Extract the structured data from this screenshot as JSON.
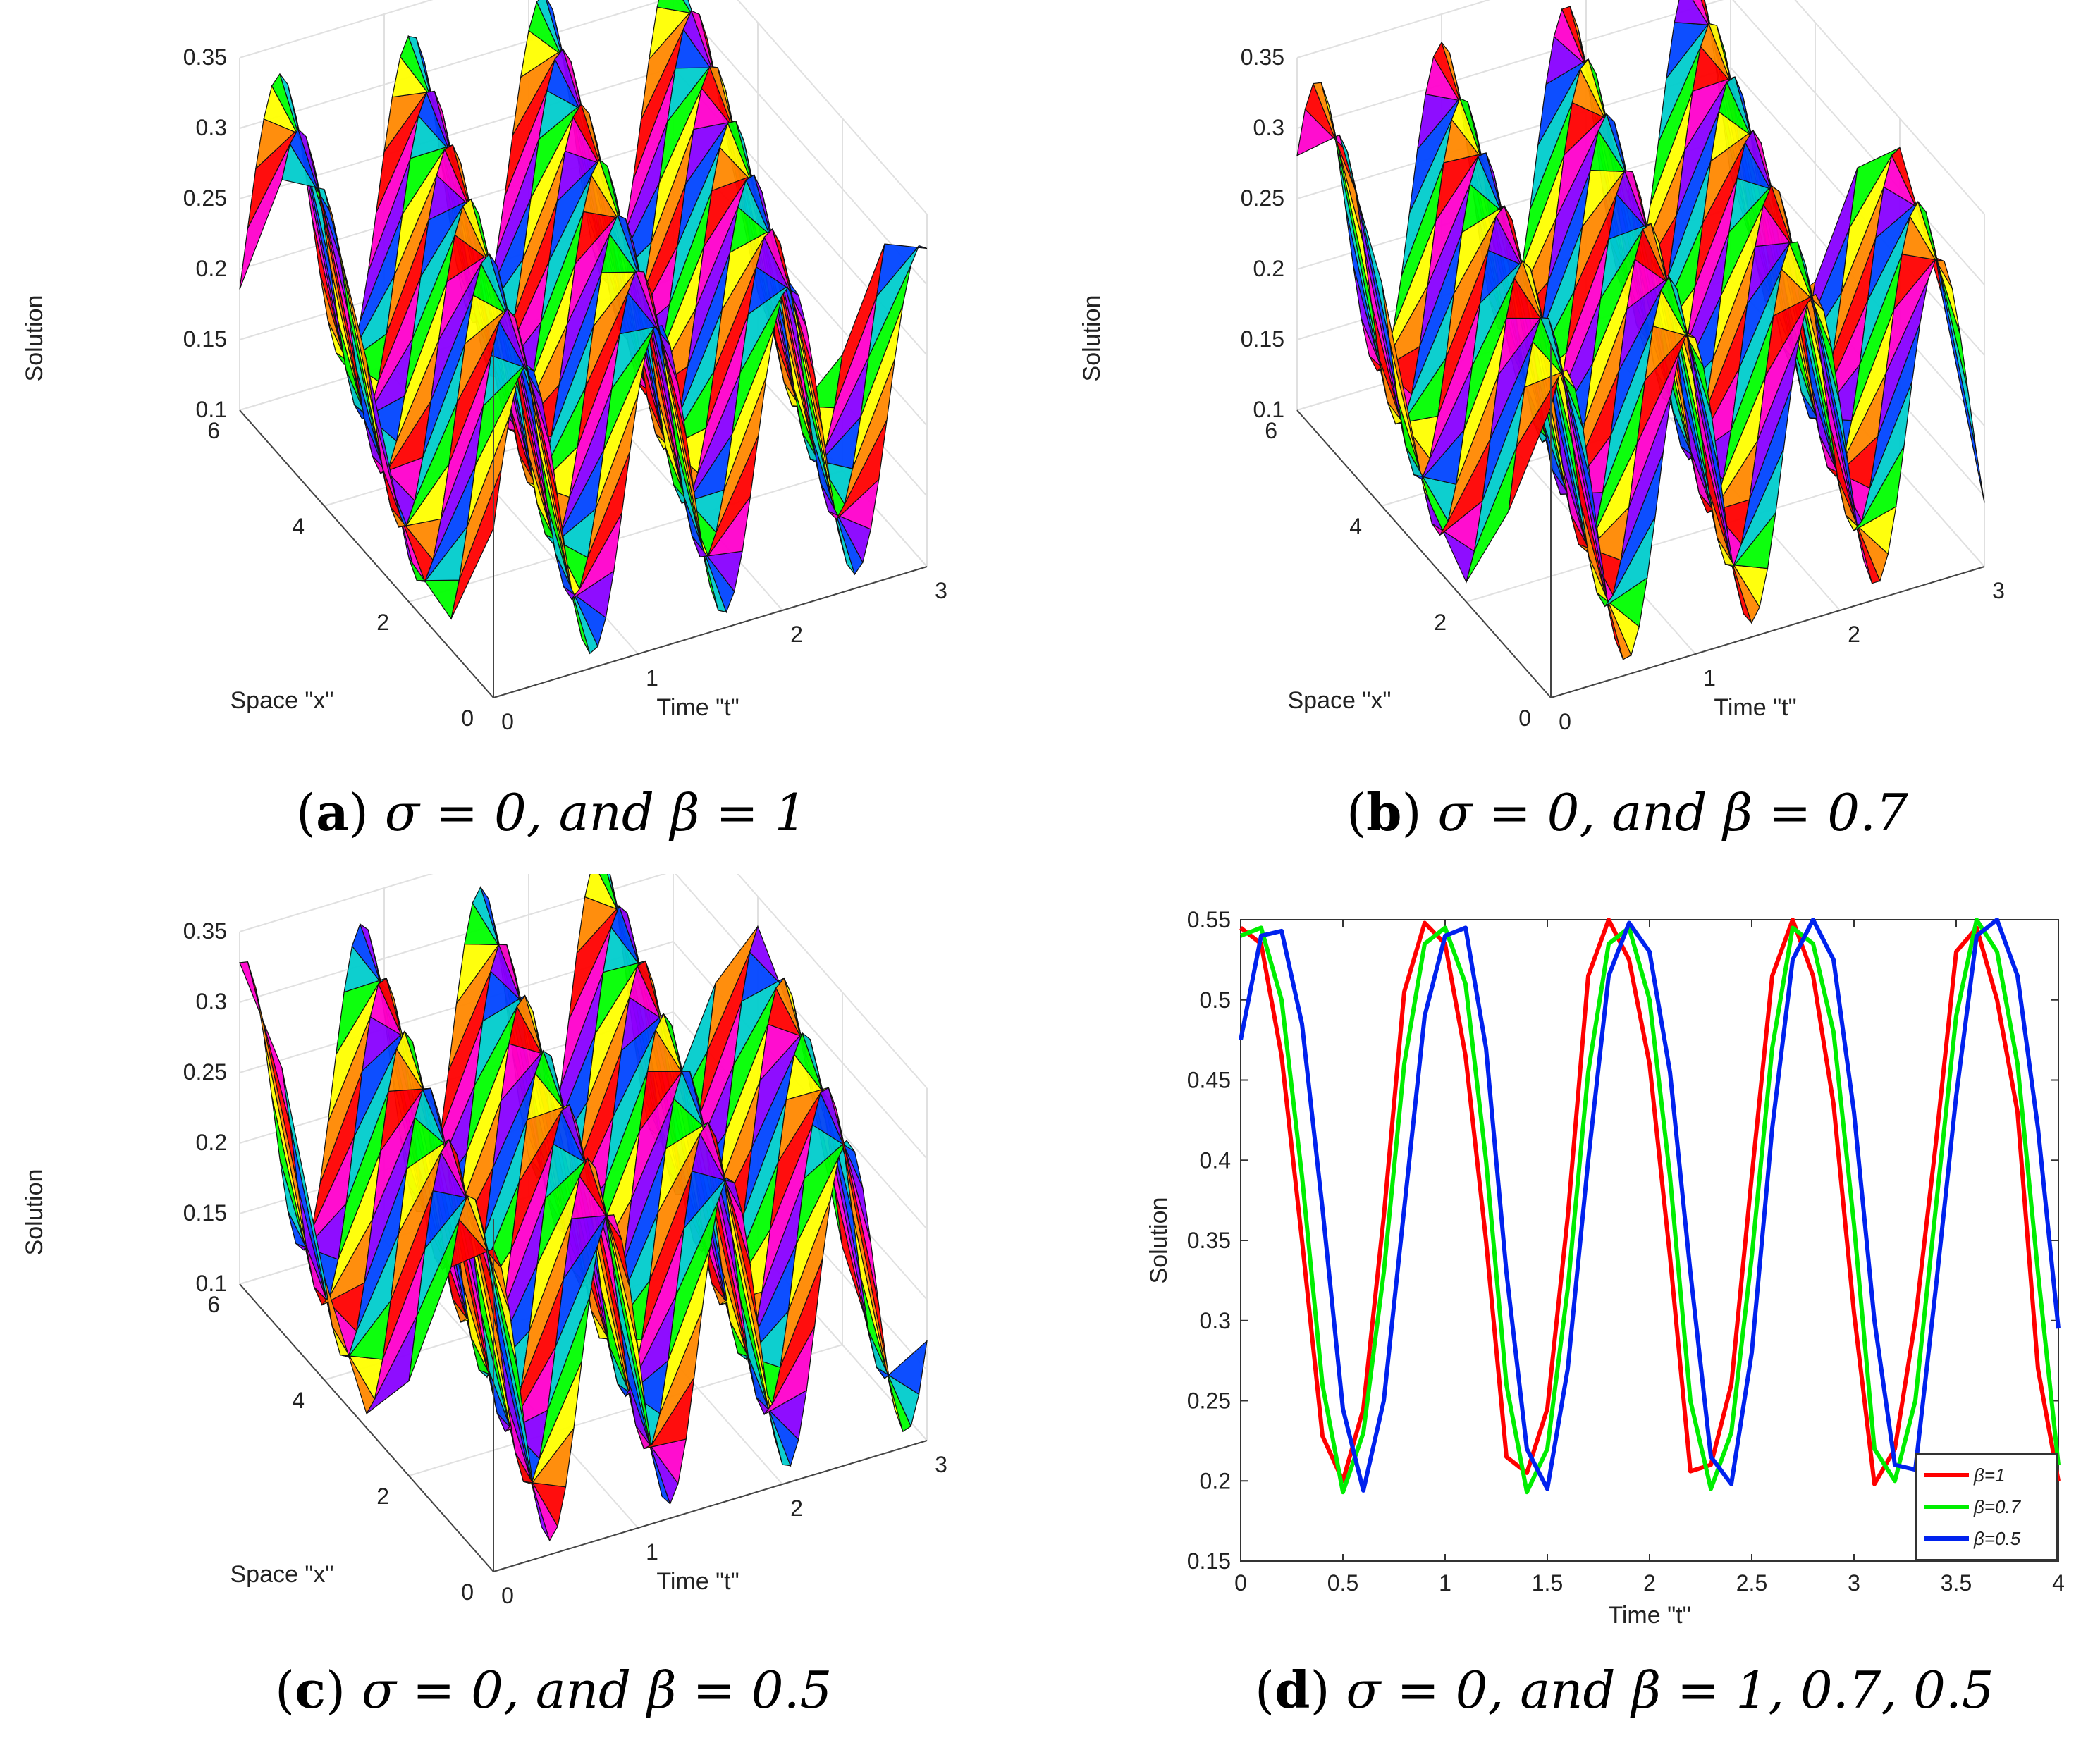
{
  "panels": [
    {
      "id": "a",
      "caption_letter": "a",
      "caption_math": "σ = 0, and  β = 1",
      "beta": 1,
      "z_label": "Solution",
      "x_label": "Space \"x\"",
      "t_label": "Time \"t\"",
      "z_ticks": [
        "0.1",
        "0.15",
        "0.2",
        "0.25",
        "0.3",
        "0.35"
      ],
      "x_ticks": [
        "0",
        "2",
        "4",
        "6"
      ],
      "t_ticks": [
        "0",
        "1",
        "2",
        "3"
      ]
    },
    {
      "id": "b",
      "caption_letter": "b",
      "caption_math": "σ = 0, and β = 0.7",
      "beta": 0.7,
      "z_label": "Solution",
      "x_label": "Space \"x\"",
      "t_label": "Time \"t\"",
      "z_ticks": [
        "0.1",
        "0.15",
        "0.2",
        "0.25",
        "0.3",
        "0.35"
      ],
      "x_ticks": [
        "0",
        "2",
        "4",
        "6"
      ],
      "t_ticks": [
        "0",
        "1",
        "2",
        "3"
      ]
    },
    {
      "id": "c",
      "caption_letter": "c",
      "caption_math": "σ = 0, and β = 0.5",
      "beta": 0.5,
      "z_label": "Solution",
      "x_label": "Space \"x\"",
      "t_label": "Time \"t\"",
      "z_ticks": [
        "0.1",
        "0.15",
        "0.2",
        "0.25",
        "0.3",
        "0.35"
      ],
      "x_ticks": [
        "0",
        "2",
        "4",
        "6"
      ],
      "t_ticks": [
        "0",
        "1",
        "2",
        "3"
      ]
    }
  ],
  "line_panel": {
    "caption_letter": "d",
    "caption_math": "σ = 0, and β = 1, 0.7, 0.5"
  },
  "chart_data": [
    {
      "type": "surface",
      "panel": "a",
      "zlim": [
        0.1,
        0.35
      ],
      "xlim": [
        0,
        6
      ],
      "tlim": [
        0,
        3
      ],
      "zlabel": "Solution",
      "xlabel": "Space \"x\"",
      "tlabel": "Time \"t\""
    },
    {
      "type": "surface",
      "panel": "b",
      "zlim": [
        0.1,
        0.35
      ],
      "xlim": [
        0,
        6
      ],
      "tlim": [
        0,
        3
      ],
      "zlabel": "Solution",
      "xlabel": "Space \"x\"",
      "tlabel": "Time \"t\""
    },
    {
      "type": "surface",
      "panel": "c",
      "zlim": [
        0.1,
        0.35
      ],
      "xlim": [
        0,
        6
      ],
      "tlim": [
        0,
        3
      ],
      "zlabel": "Solution",
      "xlabel": "Space \"x\"",
      "tlabel": "Time \"t\""
    },
    {
      "type": "line",
      "panel": "d",
      "xlabel": "Time \"t\"",
      "ylabel": "Solution",
      "xlim": [
        0,
        4
      ],
      "ylim": [
        0.15,
        0.55
      ],
      "xticks": [
        "0",
        "0.5",
        "1",
        "1.5",
        "2",
        "2.5",
        "3",
        "3.5",
        "4"
      ],
      "yticks": [
        "0.15",
        "0.2",
        "0.25",
        "0.3",
        "0.35",
        "0.4",
        "0.45",
        "0.5",
        "0.55"
      ],
      "legend_position": "bottom-right",
      "series": [
        {
          "name": "β=1",
          "color": "#ff0000",
          "x": [
            0,
            0.1,
            0.2,
            0.3,
            0.4,
            0.5,
            0.6,
            0.7,
            0.8,
            0.9,
            1.0,
            1.1,
            1.2,
            1.3,
            1.4,
            1.5,
            1.6,
            1.7,
            1.8,
            1.9,
            2.0,
            2.1,
            2.2,
            2.3,
            2.4,
            2.5,
            2.6,
            2.7,
            2.8,
            2.9,
            3.0,
            3.1,
            3.2,
            3.3,
            3.4,
            3.5,
            3.6,
            3.7,
            3.8,
            3.9,
            4.0
          ],
          "values": [
            0.545,
            0.535,
            0.465,
            0.35,
            0.228,
            0.2,
            0.245,
            0.365,
            0.505,
            0.548,
            0.535,
            0.465,
            0.35,
            0.215,
            0.205,
            0.245,
            0.365,
            0.515,
            0.55,
            0.525,
            0.46,
            0.34,
            0.206,
            0.21,
            0.26,
            0.39,
            0.515,
            0.55,
            0.515,
            0.435,
            0.305,
            0.198,
            0.22,
            0.3,
            0.41,
            0.53,
            0.545,
            0.5,
            0.43,
            0.27,
            0.2
          ]
        },
        {
          "name": "β=0.7",
          "color": "#00ee00",
          "x": [
            0,
            0.1,
            0.2,
            0.3,
            0.4,
            0.5,
            0.6,
            0.7,
            0.8,
            0.9,
            1.0,
            1.1,
            1.2,
            1.3,
            1.4,
            1.5,
            1.6,
            1.7,
            1.8,
            1.9,
            2.0,
            2.1,
            2.2,
            2.3,
            2.4,
            2.5,
            2.6,
            2.7,
            2.8,
            2.9,
            3.0,
            3.1,
            3.2,
            3.3,
            3.4,
            3.5,
            3.6,
            3.7,
            3.8,
            3.9,
            4.0
          ],
          "values": [
            0.54,
            0.545,
            0.5,
            0.39,
            0.26,
            0.193,
            0.23,
            0.33,
            0.46,
            0.535,
            0.545,
            0.51,
            0.4,
            0.26,
            0.193,
            0.22,
            0.32,
            0.455,
            0.535,
            0.545,
            0.5,
            0.39,
            0.25,
            0.195,
            0.23,
            0.34,
            0.47,
            0.545,
            0.535,
            0.48,
            0.36,
            0.22,
            0.2,
            0.25,
            0.37,
            0.49,
            0.55,
            0.53,
            0.46,
            0.33,
            0.21
          ]
        },
        {
          "name": "β=0.5",
          "color": "#0022ee",
          "x": [
            0,
            0.1,
            0.2,
            0.3,
            0.4,
            0.5,
            0.6,
            0.7,
            0.8,
            0.9,
            1.0,
            1.1,
            1.2,
            1.3,
            1.4,
            1.5,
            1.6,
            1.7,
            1.8,
            1.9,
            2.0,
            2.1,
            2.2,
            2.3,
            2.4,
            2.5,
            2.6,
            2.7,
            2.8,
            2.9,
            3.0,
            3.1,
            3.2,
            3.3,
            3.4,
            3.5,
            3.6,
            3.7,
            3.8,
            3.9,
            4.0
          ],
          "values": [
            0.475,
            0.54,
            0.543,
            0.485,
            0.37,
            0.245,
            0.194,
            0.25,
            0.37,
            0.49,
            0.54,
            0.545,
            0.47,
            0.33,
            0.22,
            0.195,
            0.27,
            0.4,
            0.515,
            0.548,
            0.53,
            0.455,
            0.33,
            0.215,
            0.198,
            0.28,
            0.42,
            0.525,
            0.55,
            0.525,
            0.43,
            0.3,
            0.21,
            0.207,
            0.32,
            0.44,
            0.54,
            0.55,
            0.515,
            0.42,
            0.295
          ]
        }
      ]
    }
  ]
}
